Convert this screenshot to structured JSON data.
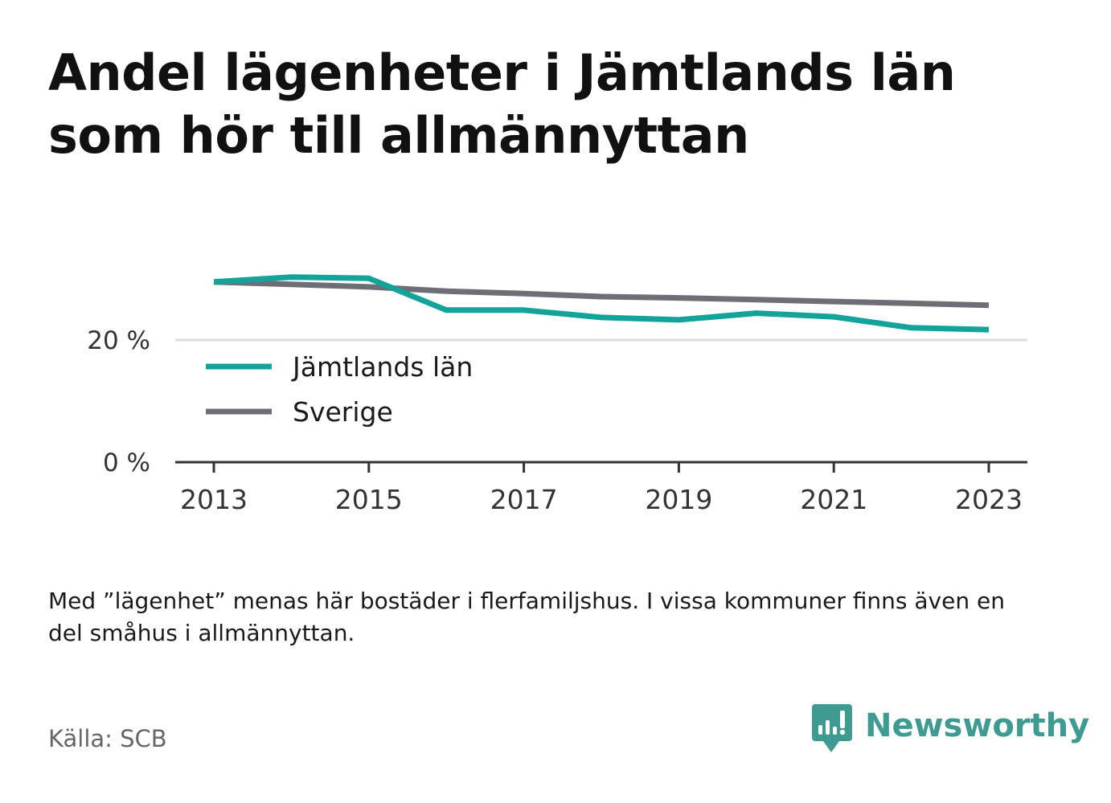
{
  "title": "Andel lägenheter i Jämtlands län som hör till allmännyttan",
  "note": "Med ”lägenhet” menas här bostäder i flerfamiljshus. I vissa kommuner finns även en del småhus i allmännyttan.",
  "source": "Källa: SCB",
  "logo": {
    "text": "Newsworthy",
    "icon": "newsworthy-bar-chart-icon",
    "color": "#3f9a91"
  },
  "chart_data": {
    "type": "line",
    "title": "",
    "xlabel": "",
    "ylabel": "",
    "x": [
      2013,
      2014,
      2015,
      2016,
      2017,
      2018,
      2019,
      2020,
      2021,
      2022,
      2023
    ],
    "xticks": [
      "2013",
      "2015",
      "2017",
      "2019",
      "2021",
      "2023"
    ],
    "yticks": [
      "0 %",
      "20 %"
    ],
    "ylim": [
      0,
      33
    ],
    "grid": "horizontal",
    "legend_position": "top-left",
    "series": [
      {
        "name": "Jämtlands län",
        "color": "#14a39a",
        "values": [
          29.5,
          30.3,
          30.1,
          24.9,
          24.9,
          23.7,
          23.3,
          24.4,
          23.8,
          22.0,
          21.7
        ]
      },
      {
        "name": "Sverige",
        "color": "#6e6e76",
        "values": [
          29.5,
          29.1,
          28.7,
          28.0,
          27.6,
          27.1,
          26.9,
          26.6,
          26.3,
          26.0,
          25.7
        ]
      }
    ]
  }
}
